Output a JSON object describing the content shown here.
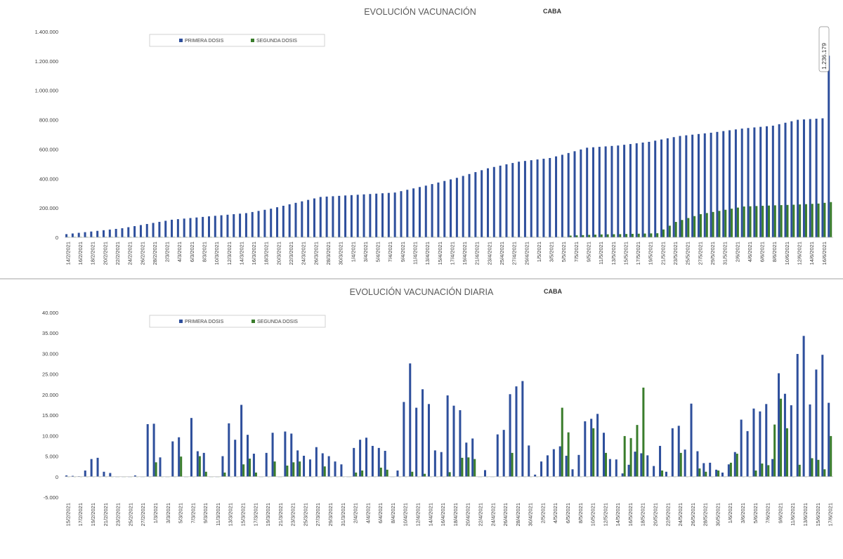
{
  "chart_data": [
    {
      "type": "bar",
      "title": "EVOLUCIÓN VACUNACIÓN",
      "subtitle": "CABA",
      "ylim": [
        0,
        1400000
      ],
      "yticks": [
        "0",
        "200.000",
        "400.000",
        "600.000",
        "800.000",
        "1.000.000",
        "1.200.000",
        "1.400.000"
      ],
      "ytick_values": [
        0,
        200000,
        400000,
        600000,
        800000,
        1000000,
        1200000,
        1400000
      ],
      "legend_position": "top-left",
      "grid": false,
      "x_start": "2021-02-14",
      "x_end": "2021-06-17",
      "date_labels": [
        "14/2/2021",
        "16/2/2021",
        "18/2/2021",
        "20/2/2021",
        "22/2/2021",
        "24/2/2021",
        "26/2/2021",
        "28/2/2021",
        "2/3/2021",
        "4/3/2021",
        "6/3/2021",
        "8/3/2021",
        "10/3/2021",
        "12/3/2021",
        "14/3/2021",
        "16/3/2021",
        "18/3/2021",
        "20/3/2021",
        "22/3/2021",
        "24/3/2021",
        "26/3/2021",
        "28/3/2021",
        "30/3/2021",
        "1/4/2021",
        "3/4/2021",
        "5/4/2021",
        "7/4/2021",
        "9/4/2021",
        "11/4/2021",
        "13/4/2021",
        "15/4/2021",
        "17/4/2021",
        "19/4/2021",
        "21/4/2021",
        "23/4/2021",
        "25/4/2021",
        "27/4/2021",
        "29/4/2021",
        "1/5/2021",
        "3/5/2021",
        "5/5/2021",
        "7/5/2021",
        "9/5/2021",
        "11/5/2021",
        "13/5/2021",
        "15/5/2021",
        "17/5/2021",
        "19/5/2021",
        "21/5/2021",
        "23/5/2021",
        "25/5/2021",
        "27/5/2021",
        "29/5/2021",
        "31/5/2021",
        "2/6/2021",
        "4/6/2021",
        "6/6/2021",
        "8/6/2021",
        "10/6/2021",
        "12/6/2021",
        "14/6/2021",
        "16/6/2021"
      ],
      "series": [
        {
          "name": "PRIMERA DOSIS",
          "color": "#2e4f9c",
          "anchors": [
            [
              0,
              22000
            ],
            [
              9,
              62000
            ],
            [
              17,
              120000
            ],
            [
              23,
              143000
            ],
            [
              29,
              165000
            ],
            [
              33,
              195000
            ],
            [
              41,
              275000
            ],
            [
              53,
              305000
            ],
            [
              58,
              352000
            ],
            [
              63,
              405000
            ],
            [
              68,
              470000
            ],
            [
              73,
              515000
            ],
            [
              78,
              540000
            ],
            [
              80,
              562000
            ],
            [
              84,
              610000
            ],
            [
              89,
              625000
            ],
            [
              94,
              650000
            ],
            [
              99,
              690000
            ],
            [
              104,
              712000
            ],
            [
              109,
              740000
            ],
            [
              114,
              760000
            ],
            [
              118,
              800000
            ],
            [
              124,
              815000
            ],
            [
              128,
              860000
            ],
            [
              134,
              960000
            ],
            [
              139,
              1060000
            ],
            [
              142,
              1130000
            ],
            [
              146,
              1180000
            ],
            [
              149,
              1236179
            ]
          ],
          "last_value": 1236179
        },
        {
          "name": "SEGUNDA DOSIS",
          "color": "#3a7d2c",
          "anchors": [
            [
              0,
              3000
            ],
            [
              80,
              3000
            ],
            [
              81,
              12000
            ],
            [
              86,
              20000
            ],
            [
              89,
              22000
            ],
            [
              95,
              28000
            ],
            [
              98,
              105000
            ],
            [
              102,
              158000
            ],
            [
              109,
              210000
            ],
            [
              114,
              218000
            ],
            [
              117,
              222000
            ],
            [
              121,
              230000
            ],
            [
              124,
              245000
            ],
            [
              127,
              270000
            ],
            [
              131,
              282000
            ],
            [
              139,
              298000
            ],
            [
              144,
              305000
            ],
            [
              146,
              325000
            ],
            [
              149,
              349000
            ]
          ]
        }
      ]
    },
    {
      "type": "bar",
      "title": "EVOLUCIÓN VACUNACIÓN DIARIA",
      "subtitle": "CABA",
      "ylim": [
        -5000,
        40000
      ],
      "yticks": [
        "-5.000",
        "0",
        "5.000",
        "10.000",
        "15.000",
        "20.000",
        "25.000",
        "30.000",
        "35.000",
        "40.000"
      ],
      "ytick_values": [
        -5000,
        0,
        5000,
        10000,
        15000,
        20000,
        25000,
        30000,
        35000,
        40000
      ],
      "legend_position": "top-left",
      "grid": false,
      "x_start": "2021-02-15",
      "x_end": "2021-06-17",
      "date_labels": [
        "15/2/2021",
        "17/2/2021",
        "19/2/2021",
        "21/2/2021",
        "23/2/2021",
        "25/2/2021",
        "27/2/2021",
        "1/3/2021",
        "3/3/2021",
        "5/3/2021",
        "7/3/2021",
        "9/3/2021",
        "11/3/2021",
        "13/3/2021",
        "15/3/2021",
        "17/3/2021",
        "19/3/2021",
        "21/3/2021",
        "23/3/2021",
        "25/3/2021",
        "27/3/2021",
        "29/3/2021",
        "31/3/2021",
        "2/4/2021",
        "4/4/2021",
        "6/4/2021",
        "8/4/2021",
        "10/4/2021",
        "12/4/2021",
        "14/4/2021",
        "16/4/2021",
        "18/4/2021",
        "20/4/2021",
        "22/4/2021",
        "24/4/2021",
        "26/4/2021",
        "28/4/2021",
        "30/4/2021",
        "2/5/2021",
        "4/5/2021",
        "6/5/2021",
        "8/5/2021",
        "10/5/2021",
        "12/5/2021",
        "14/5/2021",
        "16/5/2021",
        "18/5/2021",
        "20/5/2021",
        "22/5/2021",
        "24/5/2021",
        "26/5/2021",
        "28/5/2021",
        "30/5/2021",
        "1/6/2021",
        "3/6/2021",
        "5/6/2021",
        "7/6/2021",
        "9/6/2021",
        "11/6/2021",
        "13/6/2021",
        "15/6/2021",
        "17/6/2021"
      ],
      "series": [
        {
          "name": "PRIMERA DOSIS",
          "color": "#2e4f9c",
          "values": [
            300,
            200,
            100,
            1500,
            4300,
            4600,
            1200,
            900,
            0,
            0,
            0,
            300,
            0,
            12800,
            12900,
            4700,
            0,
            8600,
            9600,
            0,
            14300,
            6200,
            5800,
            0,
            0,
            5000,
            13000,
            9000,
            17500,
            10200,
            5600,
            0,
            5800,
            10700,
            0,
            11000,
            10500,
            6400,
            5100,
            4200,
            7200,
            5700,
            5000,
            3700,
            3000,
            0,
            7000,
            9000,
            9500,
            7500,
            7000,
            6300,
            0,
            1500,
            18200,
            27600,
            16800,
            21300,
            17700,
            6400,
            6000,
            19800,
            17300,
            16200,
            8300,
            9300,
            0,
            1600,
            0,
            10300,
            11400,
            20100,
            22000,
            23300,
            7600,
            500,
            3700,
            5200,
            6700,
            7400,
            5100,
            1800,
            5300,
            13500,
            14100,
            15300,
            10700,
            4300,
            4200,
            800,
            2900,
            6100,
            5700,
            5200,
            2600,
            7500,
            1200,
            11800,
            12400,
            6600,
            17800,
            6200,
            3300,
            3400,
            1700,
            1000,
            3000,
            6000,
            13900,
            11100,
            16600,
            15900,
            17700,
            4300,
            25200,
            20200,
            17400,
            29900,
            34300,
            17600,
            26100,
            29700,
            24600,
            33700,
            9000,
            11500,
            8400,
            8400,
            31100,
            10800,
            18000
          ],
          "last_value": 18000
        },
        {
          "name": "SEGUNDA DOSIS",
          "color": "#3a7d2c",
          "values": [
            0,
            0,
            0,
            0,
            0,
            0,
            0,
            0,
            0,
            0,
            0,
            0,
            0,
            0,
            3500,
            0,
            0,
            0,
            4900,
            0,
            0,
            5000,
            1200,
            0,
            0,
            1000,
            0,
            0,
            3000,
            4400,
            1000,
            0,
            0,
            3700,
            0,
            2700,
            3500,
            3700,
            0,
            0,
            0,
            2500,
            0,
            0,
            0,
            0,
            1000,
            1500,
            0,
            0,
            2200,
            1700,
            0,
            0,
            0,
            1200,
            0,
            700,
            0,
            0,
            0,
            1100,
            0,
            4600,
            4700,
            4300,
            0,
            0,
            0,
            0,
            0,
            5800,
            0,
            0,
            0,
            0,
            0,
            0,
            0,
            16800,
            10800,
            0,
            0,
            0,
            11800,
            0,
            5800,
            0,
            0,
            9900,
            9400,
            12600,
            21700,
            0,
            0,
            1500,
            0,
            0,
            5800,
            0,
            0,
            2000,
            1200,
            0,
            1500,
            0,
            3400,
            5600,
            0,
            0,
            1500,
            3200,
            2800,
            12700,
            19000,
            11800,
            0,
            2900,
            0,
            4500,
            4100,
            1800,
            1800,
            0,
            2000,
            0,
            1700,
            1900,
            0,
            0,
            20000,
            2500,
            0,
            0,
            2100,
            10000,
            9900
          ],
          "last_value": 9900
        }
      ]
    }
  ]
}
